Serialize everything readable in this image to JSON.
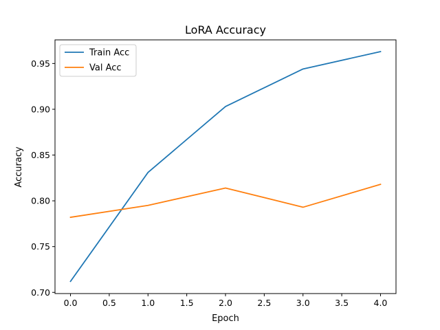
{
  "chart_data": {
    "type": "line",
    "title": "LoRA Accuracy",
    "xlabel": "Epoch",
    "ylabel": "Accuracy",
    "x": [
      0,
      1,
      2,
      3,
      4
    ],
    "xlim": [
      -0.2,
      4.2
    ],
    "ylim": [
      0.6987,
      0.9758
    ],
    "xticks": [
      0.0,
      0.5,
      1.0,
      1.5,
      2.0,
      2.5,
      3.0,
      3.5,
      4.0
    ],
    "xtick_labels": [
      "0.0",
      "0.5",
      "1.0",
      "1.5",
      "2.0",
      "2.5",
      "3.0",
      "3.5",
      "4.0"
    ],
    "yticks": [
      0.7,
      0.75,
      0.8,
      0.85,
      0.9,
      0.95
    ],
    "ytick_labels": [
      "0.70",
      "0.75",
      "0.80",
      "0.85",
      "0.90",
      "0.95"
    ],
    "grid": false,
    "legend_position": "upper-left",
    "series": [
      {
        "name": "Train Acc",
        "color": "#1f77b4",
        "values": [
          0.712,
          0.831,
          0.903,
          0.944,
          0.963
        ]
      },
      {
        "name": "Val Acc",
        "color": "#ff7f0e",
        "values": [
          0.782,
          0.795,
          0.814,
          0.793,
          0.818
        ]
      }
    ]
  }
}
